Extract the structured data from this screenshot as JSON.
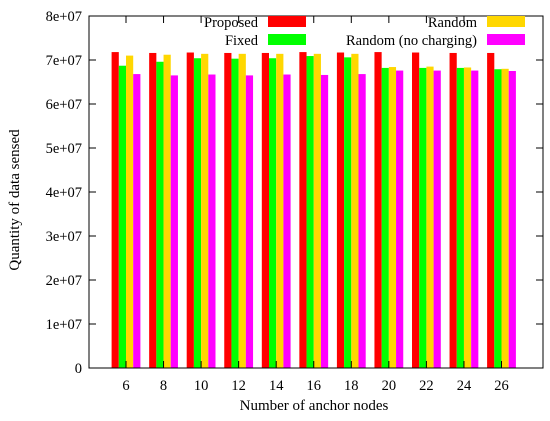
{
  "chart_data": {
    "type": "bar",
    "xlabel": "Number of anchor nodes",
    "ylabel": "Quantity of data sensed",
    "ylim": [
      0,
      80000000
    ],
    "yticks": [
      0,
      10000000,
      20000000,
      30000000,
      40000000,
      50000000,
      60000000,
      70000000,
      80000000
    ],
    "ytick_labels": [
      "0",
      "1e+07",
      "2e+07",
      "3e+07",
      "4e+07",
      "5e+07",
      "6e+07",
      "7e+07",
      "8e+07"
    ],
    "categories": [
      "6",
      "8",
      "10",
      "12",
      "14",
      "16",
      "18",
      "20",
      "22",
      "24",
      "26"
    ],
    "grid": false,
    "legend_position": "top",
    "series": [
      {
        "name": "Proposed",
        "color": "#ff0000",
        "values": [
          71800000,
          71600000,
          71700000,
          71600000,
          71600000,
          71800000,
          71700000,
          71800000,
          71700000,
          71600000,
          71600000
        ]
      },
      {
        "name": "Fixed",
        "color": "#00ff00",
        "values": [
          68700000,
          69600000,
          70400000,
          70300000,
          70400000,
          70900000,
          70600000,
          68200000,
          68200000,
          68200000,
          67900000
        ]
      },
      {
        "name": "Random",
        "color": "#ffd700",
        "values": [
          71000000,
          71200000,
          71400000,
          71400000,
          71400000,
          71400000,
          71400000,
          68400000,
          68500000,
          68300000,
          68000000
        ]
      },
      {
        "name": "Random (no charging)",
        "color": "#ff00ff",
        "values": [
          66800000,
          66500000,
          66700000,
          66500000,
          66700000,
          66600000,
          66800000,
          67600000,
          67600000,
          67600000,
          67500000
        ]
      }
    ]
  }
}
